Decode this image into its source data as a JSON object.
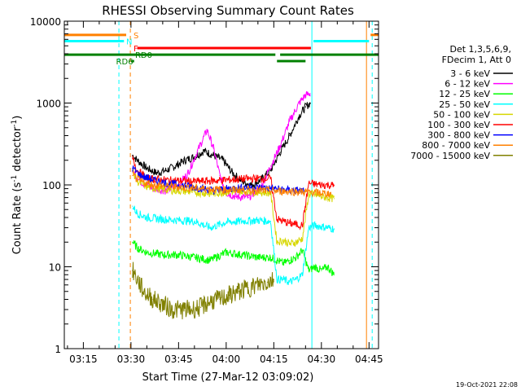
{
  "chart_data": {
    "type": "line",
    "title": "RHESSI Observing Summary Count Rates",
    "xlabel": "Start Time (27-Mar-12 03:09:02)",
    "ylabel_main": "Count Rate (s",
    "ylabel_sup1": "-1",
    "ylabel_mid": " detector",
    "ylabel_sup2": "-1",
    "ylabel_end": ")",
    "xlim_minutes": [
      189,
      288
    ],
    "ylim": [
      1,
      10000
    ],
    "yscale": "log",
    "x_ticks": [
      {
        "minute": 195,
        "label": "03:15"
      },
      {
        "minute": 210,
        "label": "03:30"
      },
      {
        "minute": 225,
        "label": "03:45"
      },
      {
        "minute": 240,
        "label": "04:00"
      },
      {
        "minute": 255,
        "label": "04:15"
      },
      {
        "minute": 270,
        "label": "04:30"
      },
      {
        "minute": 285,
        "label": "04:45"
      }
    ],
    "y_ticks": [
      {
        "value": 1,
        "label": "1"
      },
      {
        "value": 10,
        "label": "10"
      },
      {
        "value": 100,
        "label": "100"
      },
      {
        "value": 1000,
        "label": "1000"
      },
      {
        "value": 10000,
        "label": "10000"
      }
    ],
    "legend_header": [
      "Det 1,3,5,6,9,",
      "FDecim 1, Att 0"
    ],
    "series": [
      {
        "name": "3 - 6 keV",
        "color": "#000000",
        "x": [
          210.5,
          212,
          215,
          218,
          221,
          224,
          227,
          230,
          233,
          236,
          239,
          242,
          245,
          248,
          251,
          254,
          257,
          260,
          263,
          265,
          266.5
        ],
        "y": [
          230,
          200,
          160,
          140,
          150,
          170,
          200,
          220,
          260,
          230,
          200,
          140,
          110,
          100,
          115,
          150,
          250,
          400,
          700,
          900,
          1000
        ]
      },
      {
        "name": "6 - 12 keV",
        "color": "#ff00ff",
        "x": [
          210.5,
          213,
          217,
          221,
          225,
          228,
          231,
          234,
          236,
          238,
          240,
          243,
          247,
          251,
          254,
          257,
          260,
          263,
          265,
          266.5
        ],
        "y": [
          150,
          110,
          90,
          85,
          100,
          140,
          260,
          470,
          280,
          130,
          80,
          72,
          70,
          95,
          170,
          300,
          600,
          1000,
          1250,
          1300
        ]
      },
      {
        "name": "12 - 25 keV",
        "color": "#00ff00",
        "x": [
          210.5,
          212,
          215,
          220,
          225,
          230,
          235,
          240,
          245,
          250,
          254,
          256,
          258,
          260,
          262,
          264,
          266,
          268,
          270,
          272,
          274
        ],
        "y": [
          20,
          17,
          15,
          14,
          14,
          13,
          12,
          15,
          14,
          13,
          13,
          12,
          11,
          12,
          13,
          16,
          9,
          10,
          9,
          10,
          8
        ]
      },
      {
        "name": "25 - 50 keV",
        "color": "#00ffff",
        "x": [
          210.5,
          212,
          215,
          220,
          225,
          230,
          235,
          240,
          245,
          250,
          254,
          256,
          258,
          260,
          262,
          264,
          266,
          268,
          270,
          272,
          274
        ],
        "y": [
          55,
          45,
          40,
          38,
          37,
          36,
          30,
          35,
          36,
          37,
          36,
          7,
          7,
          6.5,
          7,
          8,
          30,
          32,
          31,
          30,
          29
        ]
      },
      {
        "name": "50 - 100 keV",
        "color": "#d7d700",
        "x": [
          210.5,
          212,
          215,
          220,
          225,
          230,
          235,
          240,
          245,
          250,
          254,
          256,
          258,
          260,
          262,
          264,
          266,
          268,
          270,
          272,
          274
        ],
        "y": [
          150,
          110,
          95,
          88,
          85,
          82,
          78,
          82,
          84,
          82,
          80,
          20,
          21,
          19,
          20,
          22,
          78,
          76,
          72,
          70,
          68
        ]
      },
      {
        "name": "100 - 300 keV",
        "color": "#ff0000",
        "x": [
          210.5,
          212,
          215,
          220,
          225,
          230,
          235,
          240,
          245,
          250,
          254,
          256,
          258,
          260,
          262,
          264,
          266,
          268,
          270,
          272,
          274
        ],
        "y": [
          210,
          150,
          120,
          115,
          112,
          110,
          112,
          115,
          118,
          120,
          120,
          38,
          36,
          34,
          33,
          32,
          105,
          102,
          100,
          100,
          98
        ]
      },
      {
        "name": "300 - 800 keV",
        "color": "#0000ff",
        "x": [
          210.5,
          213,
          217,
          221,
          225,
          229,
          233,
          236,
          239,
          243,
          247,
          251,
          255,
          257,
          260,
          263,
          264.5
        ],
        "y": [
          160,
          130,
          115,
          105,
          100,
          95,
          90,
          85,
          88,
          92,
          94,
          92,
          90,
          88,
          86,
          85,
          84
        ]
      },
      {
        "name": "800 - 7000 keV",
        "color": "#ff8000",
        "x": [
          210.5,
          213,
          217,
          221,
          225,
          229,
          233,
          237,
          241,
          245,
          249,
          253,
          257,
          261,
          265,
          269,
          273
        ],
        "y": [
          130,
          110,
          100,
          96,
          94,
          92,
          90,
          88,
          87,
          87,
          86,
          85,
          84,
          83,
          82,
          80,
          78
        ]
      },
      {
        "name": "7000 - 15000 keV",
        "color": "#808000",
        "x": [
          210.5,
          212,
          214,
          217,
          220,
          223,
          226,
          229,
          232,
          235,
          238,
          241,
          244,
          247,
          250,
          253,
          255
        ],
        "y": [
          9,
          7,
          5,
          4,
          3.5,
          3,
          3,
          3,
          3.2,
          3.8,
          4,
          4.5,
          5,
          5.5,
          6,
          6.5,
          7
        ]
      }
    ],
    "status_bars": [
      {
        "label": "S",
        "color": "#ff8000",
        "segments": [
          [
            189,
            208.5
          ],
          [
            285.5,
            288
          ]
        ],
        "y_value": 6800,
        "label_minute": 210.8
      },
      {
        "label": "N",
        "color": "#00ffff",
        "segments": [
          [
            189,
            207.8
          ],
          [
            267.5,
            285
          ]
        ],
        "y_value": 5700,
        "label_minute": 208.5
      },
      {
        "label": "F",
        "color": "#ff0000",
        "segments": [
          [
            212,
            266.7
          ]
        ],
        "y_value": 4700,
        "label_minute": 210.8
      },
      {
        "label": "RD0",
        "color": "#008000",
        "segments": [
          [
            189,
            255.5
          ],
          [
            257,
            288
          ]
        ],
        "y_value": 3900,
        "label_minute": 211.3
      },
      {
        "label": "RD6",
        "color": "#008000",
        "segments": [
          [
            210,
            211
          ],
          [
            256,
            265
          ]
        ],
        "y_value": 3250,
        "label_minute": 205.3
      }
    ],
    "vlines": [
      {
        "minute": 189,
        "color": "#00ffff",
        "style": "solid"
      },
      {
        "minute": 206.2,
        "color": "#00ffff",
        "style": "dashed"
      },
      {
        "minute": 209.8,
        "color": "#ff8000",
        "style": "dashed"
      },
      {
        "minute": 267,
        "color": "#00ffff",
        "style": "solid"
      },
      {
        "minute": 284.2,
        "color": "#ff8000",
        "style": "solid"
      },
      {
        "minute": 286.0,
        "color": "#00ffff",
        "style": "dashed"
      }
    ]
  },
  "footer": {
    "timestamp": "19-Oct-2021 22:08"
  }
}
